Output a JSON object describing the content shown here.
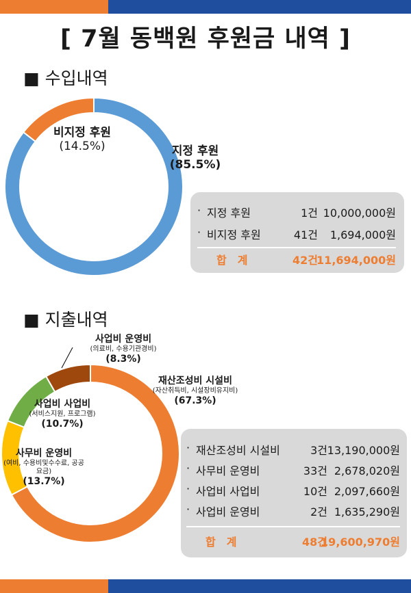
{
  "page_title": "[ 7월 동백원 후원금 내역 ]",
  "colors": {
    "orange": "#ed7d31",
    "blue": "#5b9bd5",
    "green": "#70ad47",
    "yellow": "#ffc000",
    "brown": "#9e480e",
    "navy": "#1f4e9f",
    "total_text": "#ed7d31",
    "panel_bg": "#d9d9d9"
  },
  "income": {
    "section_title": "■ 수입내역",
    "rows": [
      {
        "bullet": "·",
        "name": "지정 후원",
        "count": "1건",
        "amount": "10,000,000원"
      },
      {
        "bullet": "·",
        "name": "비지정 후원",
        "count": "41건",
        "amount": "1,694,000원"
      }
    ],
    "total": {
      "name": "합　계",
      "count": "42건",
      "amount": "11,694,000원"
    }
  },
  "expense": {
    "section_title": "■ 지출내역",
    "rows": [
      {
        "bullet": "·",
        "name": "재산조성비 시설비",
        "count": "3건",
        "amount": "13,190,000원"
      },
      {
        "bullet": "·",
        "name": "사무비 운영비",
        "count": "33건",
        "amount": "2,678,020원"
      },
      {
        "bullet": "·",
        "name": "사업비 사업비",
        "count": "10건",
        "amount": "2,097,660원"
      },
      {
        "bullet": "·",
        "name": "사업비 운영비",
        "count": "2건",
        "amount": "1,635,290원"
      }
    ],
    "total": {
      "name": "합　계",
      "count": "48건",
      "amount": "19,600,970원"
    }
  },
  "chart_data": [
    {
      "type": "pie",
      "donut": true,
      "legend": "none",
      "slices": [
        {
          "name": "지정 후원",
          "sub": "",
          "percent_label": "(85.5%)",
          "value": 85.5,
          "color": "#5b9bd5"
        },
        {
          "name": "비지정 후원",
          "sub": "",
          "percent_label": "(14.5%)",
          "value": 14.5,
          "color": "#ed7d31"
        }
      ]
    },
    {
      "type": "pie",
      "donut": true,
      "legend": "none",
      "slices": [
        {
          "name": "재산조성비 시설비",
          "sub": "(자산취득비, 시설장비유지비)",
          "percent_label": "(67.3%)",
          "value": 67.3,
          "color": "#ed7d31"
        },
        {
          "name": "사무비 운영비",
          "sub": "(여비, 수용비및수수료, 공공요금)",
          "percent_label": "(13.7%)",
          "value": 13.7,
          "color": "#ffc000"
        },
        {
          "name": "사업비 사업비",
          "sub": "(서비스지원, 프로그램)",
          "percent_label": "(10.7%)",
          "value": 10.7,
          "color": "#70ad47"
        },
        {
          "name": "사업비 운영비",
          "sub": "(의료비, 수용기관경비)",
          "percent_label": "(8.3%)",
          "value": 8.3,
          "color": "#9e480e"
        }
      ]
    }
  ]
}
